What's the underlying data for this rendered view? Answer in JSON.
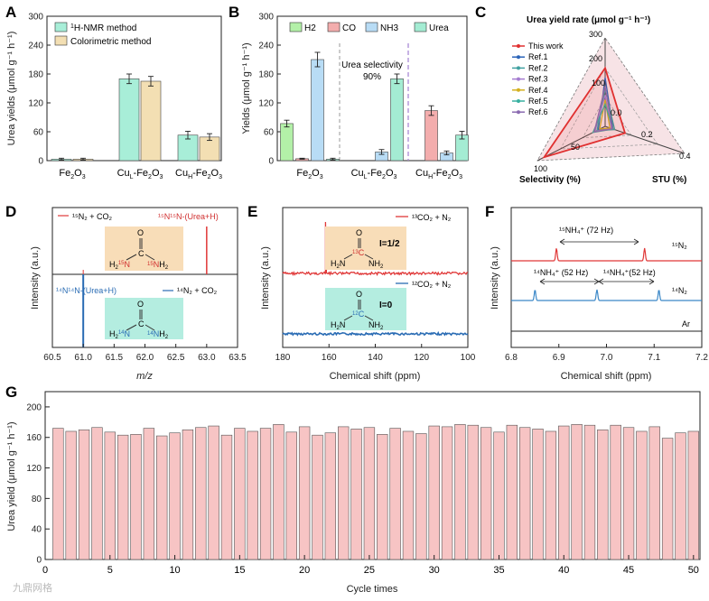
{
  "panels": {
    "A": "A",
    "B": "B",
    "C": "C",
    "D": "D",
    "E": "E",
    "F": "F",
    "G": "G"
  },
  "colors": {
    "nmr": "#a8eed8",
    "color": "#f3dfb3",
    "h2": "#b3f0a8",
    "co": "#f3adad",
    "nh3": "#b8dcf5",
    "urea": "#a4ecd3",
    "g_bar": "#f7c4c4",
    "red": "#e03838",
    "blue": "#2a6cb4",
    "orange_box": "#f8ddb8",
    "teal_box": "#b4ede0"
  },
  "chart_data": [
    {
      "id": "A",
      "type": "bar",
      "ylabel": "Urea yields (μmol g⁻¹ h⁻¹)",
      "ylim": [
        0,
        300
      ],
      "yticks": [
        0,
        60,
        120,
        180,
        240,
        300
      ],
      "categories": [
        "Fe2O3",
        "CuL-Fe2O3",
        "CuH-Fe2O3"
      ],
      "category_labels": [
        {
          "base": "Fe",
          "sub1": "2",
          "mid": "O",
          "sub2": "3"
        },
        {
          "base": "Cu",
          "sub1": "L",
          "mid": "-Fe",
          "sub2": "2",
          "end": "O",
          "sub3": "3"
        },
        {
          "base": "Cu",
          "sub1": "H",
          "mid": "-Fe",
          "sub2": "2",
          "end": "O",
          "sub3": "3"
        }
      ],
      "legend": [
        {
          "pre": "1",
          "text": "H-NMR method"
        },
        {
          "pre": "",
          "text": "Colorimetric method"
        }
      ],
      "series": [
        {
          "name": "1H-NMR method",
          "values": [
            3,
            170,
            53
          ],
          "errors": [
            2,
            10,
            8
          ]
        },
        {
          "name": "Colorimetric method",
          "values": [
            3,
            165,
            49
          ],
          "errors": [
            2,
            10,
            7
          ]
        }
      ]
    },
    {
      "id": "B",
      "type": "bar",
      "ylabel": "Yields (μmol g⁻¹ h⁻¹)",
      "ylim": [
        0,
        300
      ],
      "yticks": [
        0,
        60,
        120,
        180,
        240,
        300
      ],
      "categories": [
        "Fe2O3",
        "CuL-Fe2O3",
        "CuH-Fe2O3"
      ],
      "legend": [
        "H2",
        "CO",
        "NH3",
        "Urea"
      ],
      "annotation": "Urea selectivity 90%",
      "annotation_lines": [
        "Urea selectivity",
        "90%"
      ],
      "series": [
        {
          "name": "H2",
          "values": [
            77,
            0,
            0
          ],
          "errors": [
            7,
            0,
            0
          ]
        },
        {
          "name": "CO",
          "values": [
            4,
            0,
            104
          ],
          "errors": [
            1,
            0,
            10
          ]
        },
        {
          "name": "NH3",
          "values": [
            210,
            18,
            16
          ],
          "errors": [
            15,
            5,
            4
          ]
        },
        {
          "name": "Urea",
          "values": [
            3,
            170,
            53
          ],
          "errors": [
            2,
            10,
            8
          ]
        }
      ]
    },
    {
      "id": "C",
      "type": "radar",
      "title": "Urea yield rate (μmol g⁻¹ h⁻¹)",
      "axes": [
        "Urea yield rate",
        "Selectivity (%)",
        "STU (%)"
      ],
      "axis_labels": {
        "yield": "Urea yield rate (μmol g⁻¹ h⁻¹)",
        "selectivity": "Selectivity (%)",
        "stu": "STU (%)"
      },
      "yield_ticks": [
        "300",
        "200",
        "100",
        "0.0"
      ],
      "selectivity_ticks": [
        "100",
        "50"
      ],
      "stu_ticks": [
        "0.2",
        "0.4"
      ],
      "legend": [
        "This work",
        "Ref.1",
        "Ref.2",
        "Ref.3",
        "Ref.4",
        "Ref.5",
        "Ref.6"
      ],
      "series_colors": [
        "#e03030",
        "#2a63b8",
        "#3fa0a0",
        "#a47bd0",
        "#d4b020",
        "#38b0a0",
        "#8a6ab0"
      ]
    },
    {
      "id": "D",
      "type": "spectrum",
      "xlabel": "m/z",
      "ylabel": "Intensity (a.u.)",
      "xlim": [
        60.5,
        63.5
      ],
      "xticks": [
        "60.5",
        "61.0",
        "61.5",
        "62.0",
        "62.5",
        "63.0",
        "63.5"
      ],
      "peaks": [
        {
          "x": 63.0,
          "series": "15N2 + CO2"
        },
        {
          "x": 61.0,
          "series": "14N2 + CO2"
        }
      ],
      "labels": {
        "red_legend": "¹⁵N₂ + CO₂",
        "red_peak": "¹⁵N¹⁵N-(Urea+H)",
        "blue_peak": "¹⁴N¹⁴N-(Urea+H)",
        "blue_legend": "¹⁴N₂ + CO₂"
      }
    },
    {
      "id": "E",
      "type": "spectrum",
      "xlabel": "Chemical shift (ppm)",
      "ylabel": "Intensity (a.u.)",
      "xlim": [
        180,
        100
      ],
      "xticks": [
        "180",
        "160",
        "140",
        "120",
        "100"
      ],
      "peaks": [
        {
          "x": 161.5,
          "series": "13CO2 + N2"
        }
      ],
      "labels": {
        "red_legend": "¹³CO₂ + N₂",
        "blue_legend": "¹²CO₂ + N₂",
        "spin_half": "I=1/2",
        "spin_zero": "I=0"
      }
    },
    {
      "id": "F",
      "type": "spectrum",
      "xlabel": "Chemical shift (ppm)",
      "ylabel": "Intensity (a.u.)",
      "xlim": [
        6.8,
        7.2
      ],
      "xticks": [
        "6.8",
        "6.9",
        "7.0",
        "7.1",
        "7.2"
      ],
      "traces": [
        "15N2",
        "14N2",
        "Ar"
      ],
      "labels": {
        "nh4_15": "¹⁵NH₄⁺ (72 Hz)",
        "nh4_14a": "¹⁴NH₄⁺ (52 Hz)",
        "nh4_14b": "¹⁴NH₄⁺(52 Hz)",
        "tr_15": "¹⁵N₂",
        "tr_14": "¹⁴N₂",
        "tr_ar": "Ar"
      },
      "peaks_15N2": [
        6.895,
        7.08
      ],
      "peaks_14N2": [
        6.85,
        6.98,
        7.11
      ]
    },
    {
      "id": "G",
      "type": "bar",
      "xlabel": "Cycle times",
      "ylabel": "Urea yield (μmol g⁻¹ h⁻¹)",
      "ylim": [
        0,
        220
      ],
      "yticks": [
        0,
        40,
        80,
        120,
        160,
        200
      ],
      "xlim": [
        0,
        50.5
      ],
      "xticks": [
        0,
        5,
        10,
        15,
        20,
        25,
        30,
        35,
        40,
        45,
        50
      ],
      "x": [
        1,
        2,
        3,
        4,
        5,
        6,
        7,
        8,
        9,
        10,
        11,
        12,
        13,
        14,
        15,
        16,
        17,
        18,
        19,
        20,
        21,
        22,
        23,
        24,
        25,
        26,
        27,
        28,
        29,
        30,
        31,
        32,
        33,
        34,
        35,
        36,
        37,
        38,
        39,
        40,
        41,
        42,
        43,
        44,
        45,
        46,
        47,
        48,
        49,
        50
      ],
      "values": [
        172,
        168,
        170,
        173,
        167,
        163,
        164,
        172,
        162,
        166,
        170,
        173,
        175,
        163,
        172,
        168,
        172,
        177,
        167,
        174,
        163,
        166,
        174,
        171,
        173,
        164,
        172,
        168,
        165,
        175,
        174,
        177,
        176,
        173,
        167,
        176,
        173,
        171,
        168,
        175,
        177,
        176,
        170,
        176,
        173,
        168,
        174,
        159,
        166,
        168
      ]
    }
  ],
  "watermark": "九鼎网格"
}
